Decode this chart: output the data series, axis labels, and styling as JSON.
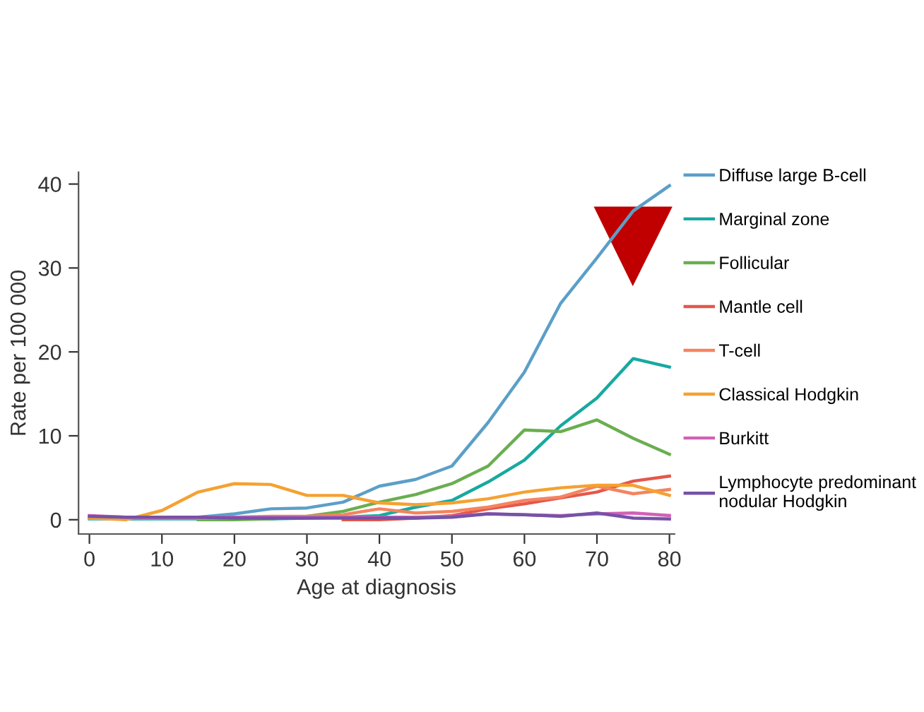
{
  "chart_data": {
    "type": "line",
    "xlabel": "Age at diagnosis",
    "ylabel": "Rate per 100 000",
    "x": [
      0,
      5,
      10,
      15,
      20,
      25,
      30,
      35,
      40,
      45,
      50,
      55,
      60,
      65,
      70,
      75,
      80
    ],
    "series": [
      {
        "name": "Diffuse large B-cell",
        "color": "#5b9fc8",
        "values": [
          0.2,
          0.1,
          0.2,
          0.3,
          0.7,
          1.3,
          1.4,
          2.1,
          4.0,
          4.8,
          6.4,
          11.6,
          17.6,
          25.8,
          31.2,
          36.8,
          39.8
        ]
      },
      {
        "name": "Marginal zone",
        "color": "#17a9a0",
        "values": [
          0.1,
          0.1,
          0.1,
          0.1,
          0.1,
          0.1,
          0.2,
          0.3,
          0.5,
          1.5,
          2.3,
          4.5,
          7.1,
          11.2,
          14.5,
          19.2,
          18.2
        ]
      },
      {
        "name": "Follicular",
        "color": "#6aae50",
        "values": [
          null,
          null,
          null,
          0.0,
          0.0,
          0.1,
          0.4,
          1.0,
          2.1,
          3.0,
          4.3,
          6.4,
          10.7,
          10.5,
          11.9,
          9.7,
          7.8
        ]
      },
      {
        "name": "Mantle cell",
        "color": "#e5574b",
        "values": [
          null,
          null,
          null,
          null,
          null,
          null,
          null,
          0.0,
          0.0,
          0.2,
          0.5,
          1.3,
          1.9,
          2.6,
          3.3,
          4.6,
          5.2
        ]
      },
      {
        "name": "T-cell",
        "color": "#f4845f",
        "values": [
          0.2,
          0.2,
          0.2,
          0.2,
          0.3,
          0.4,
          0.4,
          0.6,
          1.3,
          0.8,
          1.0,
          1.5,
          2.3,
          2.7,
          4.0,
          3.1,
          3.6
        ]
      },
      {
        "name": "Classical Hodgkin",
        "color": "#f5a131",
        "values": [
          0.2,
          0.0,
          1.1,
          3.3,
          4.3,
          4.2,
          2.9,
          2.9,
          2.0,
          1.8,
          2.0,
          2.5,
          3.3,
          3.8,
          4.1,
          4.1,
          2.9
        ]
      },
      {
        "name": "Burkitt",
        "color": "#d260b6",
        "values": [
          0.5,
          0.3,
          0.3,
          0.3,
          0.3,
          0.3,
          0.3,
          0.3,
          0.3,
          0.3,
          0.4,
          0.7,
          0.6,
          0.5,
          0.7,
          0.8,
          0.5
        ]
      },
      {
        "name": "Lymphocyte predominant\nnodular Hodgkin",
        "color": "#7453a8",
        "values": [
          0.4,
          0.3,
          0.3,
          0.3,
          0.2,
          0.2,
          0.2,
          0.2,
          0.2,
          0.2,
          0.3,
          0.7,
          0.6,
          0.4,
          0.8,
          0.2,
          0.1
        ]
      }
    ],
    "xlim": [
      -1.5,
      80.7
    ],
    "xticks": [
      0,
      10,
      20,
      30,
      40,
      50,
      60,
      70,
      80
    ],
    "ylim": [
      -1.7,
      41.4
    ],
    "yticks": [
      0,
      10,
      20,
      30,
      40
    ],
    "grid": false,
    "legend": "right",
    "marker": "none",
    "line_style": "solid"
  }
}
